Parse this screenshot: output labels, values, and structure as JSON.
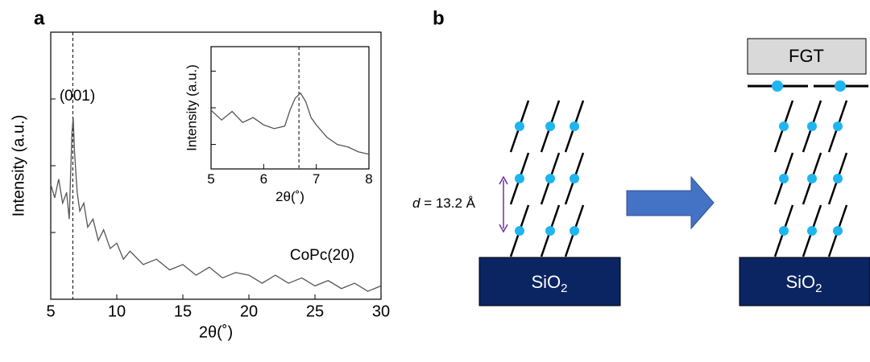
{
  "chart_data": [
    {
      "type": "line",
      "panel_label": "a",
      "x_label": "2θ(˚)",
      "y_label": "Intensity (a.u.)",
      "annotations": [
        "(001)",
        "CoPc(20)"
      ],
      "reference_x": 6.67,
      "x": [
        5,
        5.3,
        5.6,
        5.9,
        6.2,
        6.4,
        6.6,
        6.7,
        6.8,
        7.0,
        7.2,
        7.5,
        7.8,
        8.2,
        8.6,
        9,
        9.5,
        10,
        10.5,
        11,
        12,
        13,
        14,
        15,
        16,
        17,
        18,
        19,
        20,
        21,
        22,
        23,
        24,
        25,
        26,
        27,
        28,
        29,
        30
      ],
      "values": [
        43,
        38,
        45,
        36,
        40,
        30,
        62,
        68,
        55,
        40,
        33,
        36,
        27,
        30,
        22,
        26,
        19,
        21,
        15,
        18,
        13,
        15,
        11,
        13,
        9,
        12,
        8,
        10,
        9,
        6,
        9,
        6,
        8,
        5,
        7,
        4,
        6,
        3,
        5
      ],
      "color": "#555555",
      "xlim": [
        5,
        30
      ],
      "xticks": [
        5,
        10,
        15,
        20,
        25,
        30
      ],
      "ylim": [
        0,
        100
      ],
      "yticks": [
        25,
        50,
        75
      ]
    },
    {
      "type": "line",
      "x_label": "2θ(˚)",
      "y_label": "Intensity (a.u.)",
      "reference_x": 6.67,
      "x": [
        5,
        5.2,
        5.4,
        5.6,
        5.8,
        6,
        6.2,
        6.4,
        6.5,
        6.6,
        6.7,
        6.8,
        6.9,
        7,
        7.2,
        7.4,
        7.6,
        7.8,
        8
      ],
      "values": [
        48,
        40,
        47,
        38,
        42,
        36,
        33,
        35,
        48,
        58,
        62,
        55,
        42,
        36,
        26,
        20,
        18,
        14,
        12
      ],
      "color": "#555555",
      "xlim": [
        5,
        8
      ],
      "xticks": [
        5,
        6,
        7,
        8
      ],
      "ylim": [
        0,
        100
      ],
      "yticks": [
        20,
        50,
        80
      ]
    }
  ],
  "diagram": {
    "panel_label": "b",
    "spacing_symbol": "d",
    "spacing_text": " = 13.2 Å",
    "left_substrate": {
      "text": "SiO",
      "sub": "2"
    },
    "right_substrate": {
      "text": "SiO",
      "sub": "2"
    },
    "top_layer": "FGT"
  }
}
